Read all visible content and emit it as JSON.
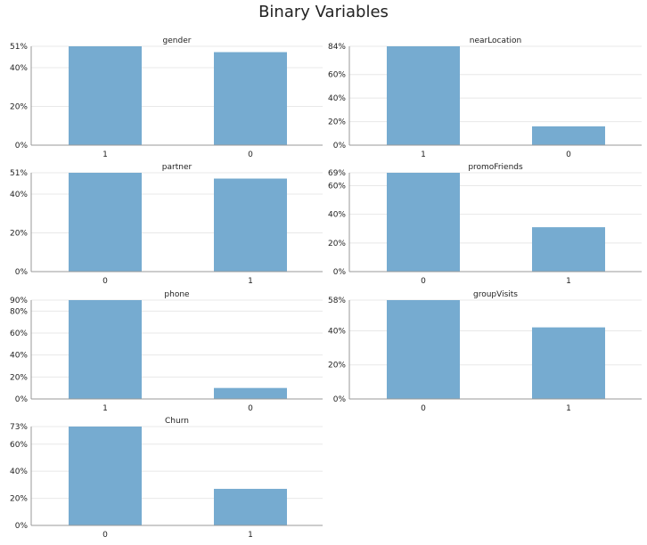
{
  "title": "Binary Variables",
  "bar_color": "#76abd0",
  "grid_color": "#e8e8e8",
  "axis_color": "#999999",
  "chart_data": [
    {
      "type": "bar",
      "title": "gender",
      "categories": [
        "1",
        "0"
      ],
      "values": [
        51,
        48
      ],
      "ylim": [
        0,
        51
      ],
      "yticks": [
        "0%",
        "20%",
        "40%",
        "51%"
      ],
      "ytick_values": [
        0,
        20,
        40,
        51
      ]
    },
    {
      "type": "bar",
      "title": "nearLocation",
      "categories": [
        "1",
        "0"
      ],
      "values": [
        84,
        16
      ],
      "ylim": [
        0,
        84
      ],
      "yticks": [
        "0%",
        "20%",
        "40%",
        "60%",
        "84%"
      ],
      "ytick_values": [
        0,
        20,
        40,
        60,
        84
      ]
    },
    {
      "type": "bar",
      "title": "partner",
      "categories": [
        "0",
        "1"
      ],
      "values": [
        51,
        48
      ],
      "ylim": [
        0,
        51
      ],
      "yticks": [
        "0%",
        "20%",
        "40%",
        "51%"
      ],
      "ytick_values": [
        0,
        20,
        40,
        51
      ]
    },
    {
      "type": "bar",
      "title": "promoFriends",
      "categories": [
        "0",
        "1"
      ],
      "values": [
        69,
        31
      ],
      "ylim": [
        0,
        69
      ],
      "yticks": [
        "0%",
        "20%",
        "40%",
        "60%",
        "69%"
      ],
      "ytick_values": [
        0,
        20,
        40,
        60,
        69
      ]
    },
    {
      "type": "bar",
      "title": "phone",
      "categories": [
        "1",
        "0"
      ],
      "values": [
        90,
        10
      ],
      "ylim": [
        0,
        90
      ],
      "yticks": [
        "0%",
        "20%",
        "40%",
        "60%",
        "80%",
        "90%"
      ],
      "ytick_values": [
        0,
        20,
        40,
        60,
        80,
        90
      ]
    },
    {
      "type": "bar",
      "title": "groupVisits",
      "categories": [
        "0",
        "1"
      ],
      "values": [
        58,
        42
      ],
      "ylim": [
        0,
        58
      ],
      "yticks": [
        "0%",
        "20%",
        "40%",
        "58%"
      ],
      "ytick_values": [
        0,
        20,
        40,
        58
      ]
    },
    {
      "type": "bar",
      "title": "Churn",
      "categories": [
        "0",
        "1"
      ],
      "values": [
        73,
        27
      ],
      "ylim": [
        0,
        73
      ],
      "yticks": [
        "0%",
        "20%",
        "40%",
        "60%",
        "73%"
      ],
      "ytick_values": [
        0,
        20,
        40,
        60,
        73
      ]
    }
  ]
}
